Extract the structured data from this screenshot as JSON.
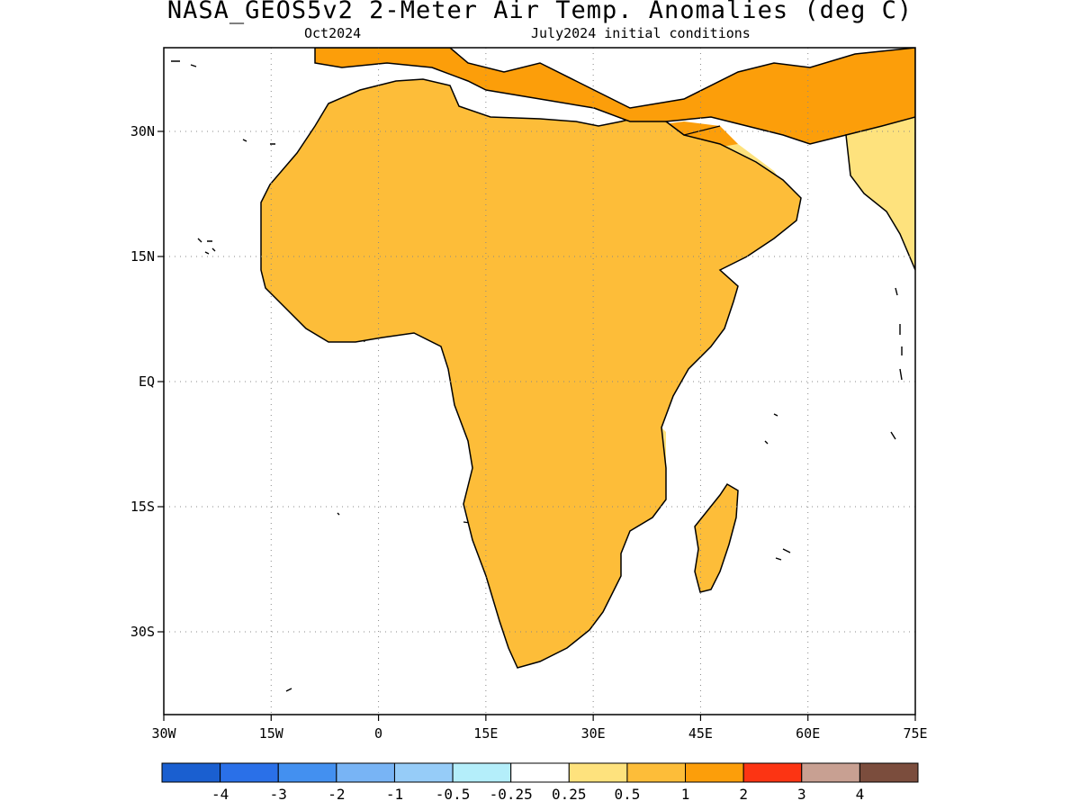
{
  "title": "NASA_GEOS5v2 2-Meter Air Temp. Anomalies (deg C)",
  "subtitle_left": "Oct2024",
  "subtitle_right": "July2024 initial conditions",
  "lon_ticks": [
    "30W",
    "15W",
    "0",
    "15E",
    "30E",
    "45E",
    "60E",
    "75E"
  ],
  "lat_ticks": [
    "30N",
    "15N",
    "EQ",
    "15S",
    "30S"
  ],
  "colorbar": {
    "colors": [
      "#1a5fd0",
      "#2a70e8",
      "#4390f0",
      "#78b4f5",
      "#96ccf8",
      "#b4eefa",
      "#ffffff",
      "#fee27d",
      "#fdbd39",
      "#fc9e0a",
      "#fc3413",
      "#c8a092",
      "#7b4d3d"
    ],
    "labels": [
      "-4",
      "-3",
      "-2",
      "-1",
      "-0.5",
      "-0.25",
      "0.25",
      "0.5",
      "1",
      "2",
      "3",
      "4"
    ]
  },
  "palette": {
    "land": "#fdbd39",
    "warm_light": "#fee27d",
    "warm_strong": "#fc9e0a",
    "hot": "#fc3413",
    "cool_light": "#b4eefa",
    "cool": "#96ccf8",
    "cold": "#78b4f5"
  }
}
